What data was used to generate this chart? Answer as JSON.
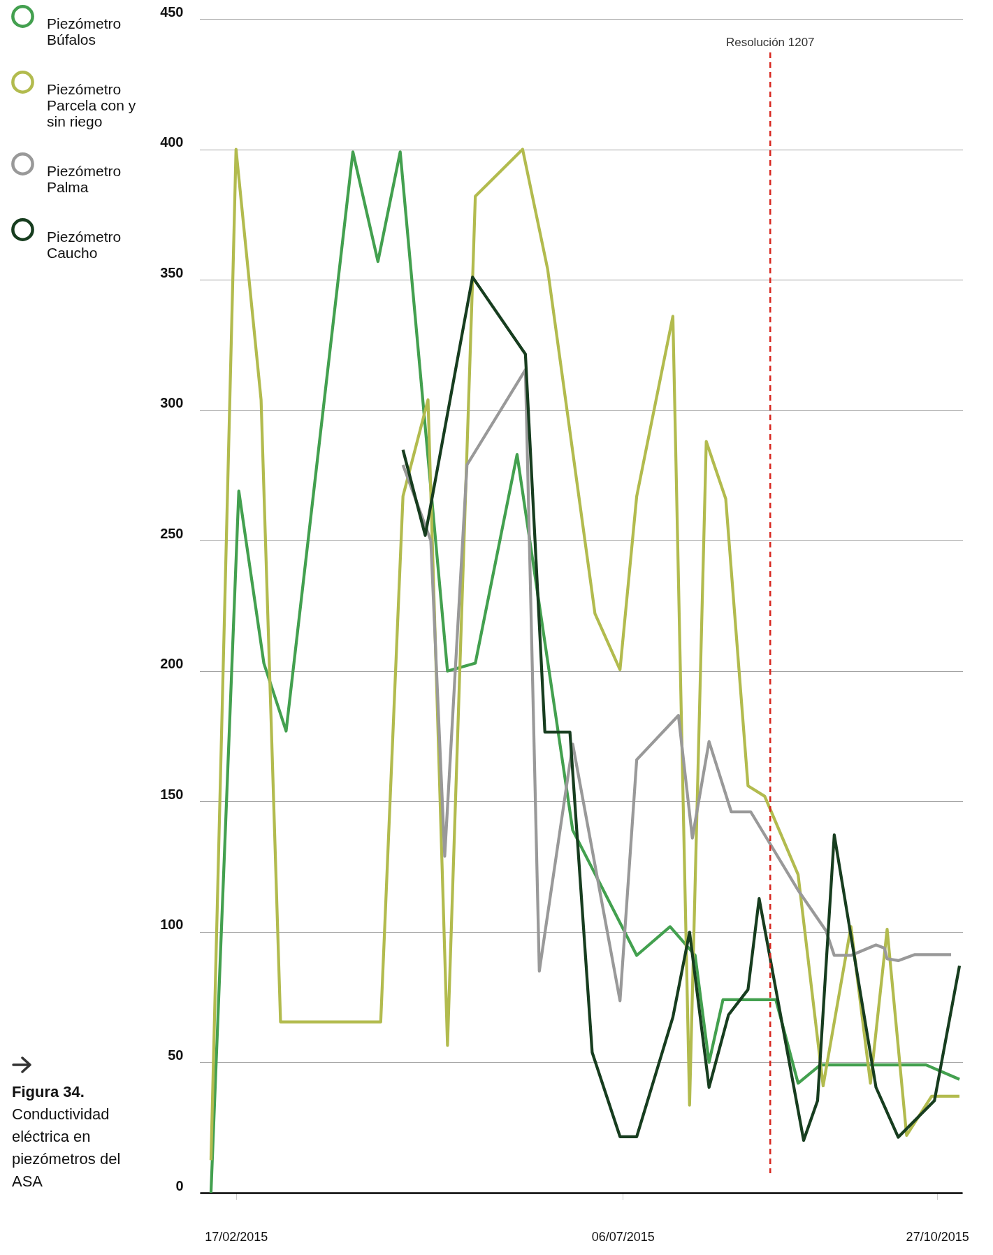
{
  "chart_data": {
    "type": "line",
    "title": "Figura 34.",
    "subtitle": "Conductividad eléctrica en piezómetros del ASA",
    "xlim": [
      "2015-02-04",
      "2015-11-05"
    ],
    "xticks": [
      {
        "value": "2015-02-17",
        "label": "17/02/2015"
      },
      {
        "value": "2015-07-06",
        "label": "06/07/2015"
      },
      {
        "value": "2015-10-27",
        "label": "27/10/2015"
      }
    ],
    "ylim": [
      0,
      450
    ],
    "yticks": [
      0,
      50,
      100,
      150,
      200,
      250,
      300,
      350,
      400,
      450
    ],
    "grid": "y",
    "legend": "top left",
    "ref_lines": [
      {
        "axis": "x",
        "value": "2015-08-28",
        "label": "Resolución 1207",
        "color": "#d7261e",
        "line_style": "dashed"
      }
    ],
    "series": [
      {
        "name": "Piezómetro Búfalos",
        "color": "#43a04f",
        "x": [
          "2015-02-08",
          "2015-02-18",
          "2015-02-27",
          "2015-03-07",
          "2015-03-31",
          "2015-04-09",
          "2015-04-17",
          "2015-05-04",
          "2015-05-14",
          "2015-05-29",
          "2015-06-18",
          "2015-07-11",
          "2015-07-23",
          "2015-08-01",
          "2015-08-06",
          "2015-08-11",
          "2015-08-30",
          "2015-09-07",
          "2015-09-15",
          "2015-10-23",
          "2015-11-04"
        ],
        "values": [
          0,
          269,
          203,
          177,
          399,
          357,
          399,
          200,
          203,
          283,
          139,
          91,
          102,
          91,
          50,
          74,
          74,
          42,
          49,
          49,
          43.5
        ]
      },
      {
        "name": "Piezómetro Parcela con y sin riego",
        "color": "#b2bb4e",
        "x": [
          "2015-02-08",
          "2015-02-17",
          "2015-02-26",
          "2015-03-05",
          "2015-04-10",
          "2015-04-18",
          "2015-04-27",
          "2015-05-04",
          "2015-05-14",
          "2015-05-31",
          "2015-06-09",
          "2015-06-26",
          "2015-07-05",
          "2015-07-11",
          "2015-07-24",
          "2015-07-30",
          "2015-08-05",
          "2015-08-12",
          "2015-08-20",
          "2015-08-26",
          "2015-09-07",
          "2015-09-16",
          "2015-09-26",
          "2015-10-03",
          "2015-10-09",
          "2015-10-16",
          "2015-10-25",
          "2015-11-04"
        ],
        "values": [
          12.5,
          400,
          304,
          65.5,
          65.5,
          267,
          304,
          56.5,
          382,
          400,
          354,
          222,
          200.5,
          267,
          336,
          33.6,
          288,
          266,
          156,
          152,
          122,
          41,
          102,
          42,
          101,
          22,
          37,
          37
        ]
      },
      {
        "name": "Piezómetro Palma",
        "color": "#999999",
        "x": [
          "2015-04-18",
          "2015-04-28",
          "2015-05-03",
          "2015-05-11",
          "2015-06-01",
          "2015-06-06",
          "2015-06-18",
          "2015-07-05",
          "2015-07-11",
          "2015-07-26",
          "2015-07-31",
          "2015-08-06",
          "2015-08-14",
          "2015-08-21",
          "2015-09-07",
          "2015-09-17",
          "2015-09-20",
          "2015-09-26",
          "2015-10-05",
          "2015-10-08",
          "2015-10-09",
          "2015-10-13",
          "2015-10-19",
          "2015-11-01"
        ],
        "values": [
          279,
          250,
          129,
          279,
          315.5,
          85,
          172,
          73.6,
          166,
          183,
          136,
          173,
          146,
          146,
          116,
          100.5,
          91,
          91,
          95,
          93.8,
          89.7,
          89,
          91.3,
          91.3
        ]
      },
      {
        "name": "Piezómetro Caucho",
        "color": "#173d1f",
        "x": [
          "2015-04-18",
          "2015-04-26",
          "2015-05-13",
          "2015-06-01",
          "2015-06-08",
          "2015-06-17",
          "2015-06-25",
          "2015-07-05",
          "2015-07-11",
          "2015-07-24",
          "2015-07-30",
          "2015-08-06",
          "2015-08-13",
          "2015-08-20",
          "2015-08-24",
          "2015-09-09",
          "2015-09-14",
          "2015-09-20",
          "2015-10-05",
          "2015-10-13",
          "2015-10-26",
          "2015-11-04"
        ],
        "values": [
          284.8,
          252,
          351,
          321.5,
          176.6,
          176.6,
          53.8,
          21.5,
          21.5,
          67.3,
          99.9,
          40.4,
          68.2,
          77.9,
          112.8,
          20.1,
          35.3,
          137.2,
          40.4,
          21.3,
          35.3,
          87
        ]
      }
    ]
  }
}
